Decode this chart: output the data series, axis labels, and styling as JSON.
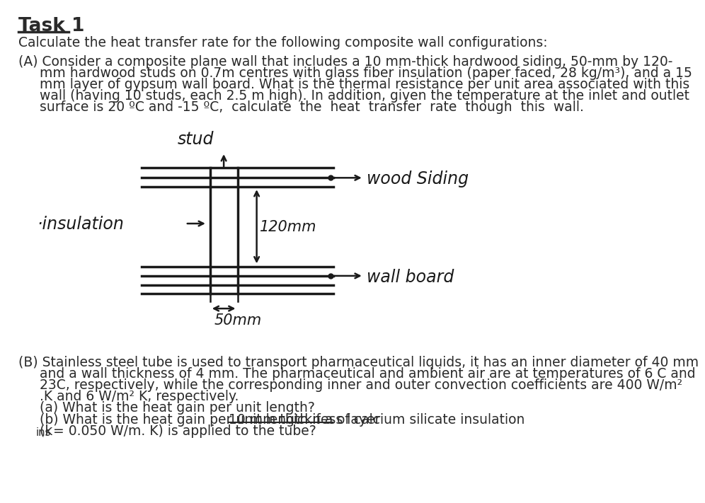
{
  "bg_color": "#ffffff",
  "text_color": "#2a2a2a",
  "diagram_color": "#1a1a1a",
  "title": "Task 1",
  "subtitle": "Calculate the heat transfer rate for the following composite wall configurations:",
  "sA_line1": "(A) Consider a composite plane wall that includes a 10 mm-thick hardwood siding, 50-mm by 120-",
  "sA_line2": "     mm hardwood studs on 0.7m centres with glass fiber insulation (paper faced, 28 kg/m³), and a 15",
  "sA_line3": "     mm layer of gypsum wall board. What is the thermal resistance per unit area associated with this",
  "sA_line4": "     wall (having 10 studs, each 2.5 m high). In addition, given the temperature at the inlet and outlet",
  "sA_line5": "     surface is 20 ºC and -15 ºC,  calculate  the  heat  transfer  rate  though  this  wall.",
  "sB_line1": "(B) Stainless steel tube is used to transport pharmaceutical liquids, it has an inner diameter of 40 mm",
  "sB_line2": "     and a wall thickness of 4 mm. The pharmaceutical and ambient air are at temperatures of 6 C and",
  "sB_line3": "     23C, respectively, while the corresponding inner and outer convection coefficients are 400 W/m²",
  "sB_line4": "     .K and 6 W/m² K, respectively.",
  "sB_line5": "     (a) What is the heat gain per unit length?",
  "sB_line6a": "     (b) What is the heat gain per unit length if a ",
  "sB_line6b": "10 mm thickness layer",
  "sB_line6c": " of calcium silicate insulation",
  "sB_line7": "     (k",
  "sB_line7b": "ins",
  "sB_line7c": " = 0.050 W/m. K) is applied to the tube?",
  "label_stud": "stud",
  "label_wood": "wood Siding",
  "label_insulation": "insulation",
  "label_wallboard": "wall board",
  "label_120mm": "120mm",
  "label_50mm": "50mm"
}
